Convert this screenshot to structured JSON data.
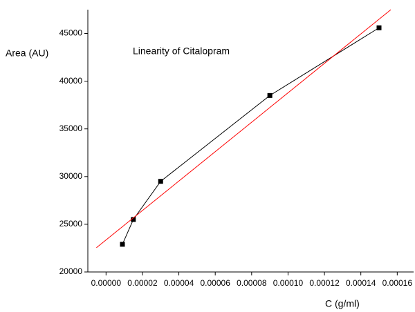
{
  "chart_data": {
    "type": "line",
    "title": "Linearity of Citalopram",
    "x_label": "C (g/ml)",
    "y_label": "Area (AU)",
    "series": [
      {
        "color": "#000000",
        "marker": "square",
        "x": [
          9e-06,
          1.5e-05,
          3e-05,
          9e-05,
          0.00015
        ],
        "values": [
          22900,
          25500,
          29500,
          38500,
          45600
        ]
      },
      {
        "color": "#ff0000",
        "marker": "none",
        "x": [
          -5.3e-06,
          0.0001565
        ],
        "values": [
          22540,
          47500
        ]
      }
    ],
    "xlim": [
      -1e-05,
      0.000169
    ],
    "ylim": [
      20000,
      47500
    ],
    "xticks": [
      {
        "value": 0,
        "label": "0.00000"
      },
      {
        "value": 2e-05,
        "label": "0.00002"
      },
      {
        "value": 4e-05,
        "label": "0.00004"
      },
      {
        "value": 6e-05,
        "label": "0.00006"
      },
      {
        "value": 8e-05,
        "label": "0.00008"
      },
      {
        "value": 0.0001,
        "label": "0.00010"
      },
      {
        "value": 0.00012,
        "label": "0.00012"
      },
      {
        "value": 0.00014,
        "label": "0.00014"
      },
      {
        "value": 0.00016,
        "label": "0.00016"
      }
    ],
    "yticks": [
      20000,
      25000,
      30000,
      35000,
      40000,
      45000
    ],
    "grid": false
  }
}
